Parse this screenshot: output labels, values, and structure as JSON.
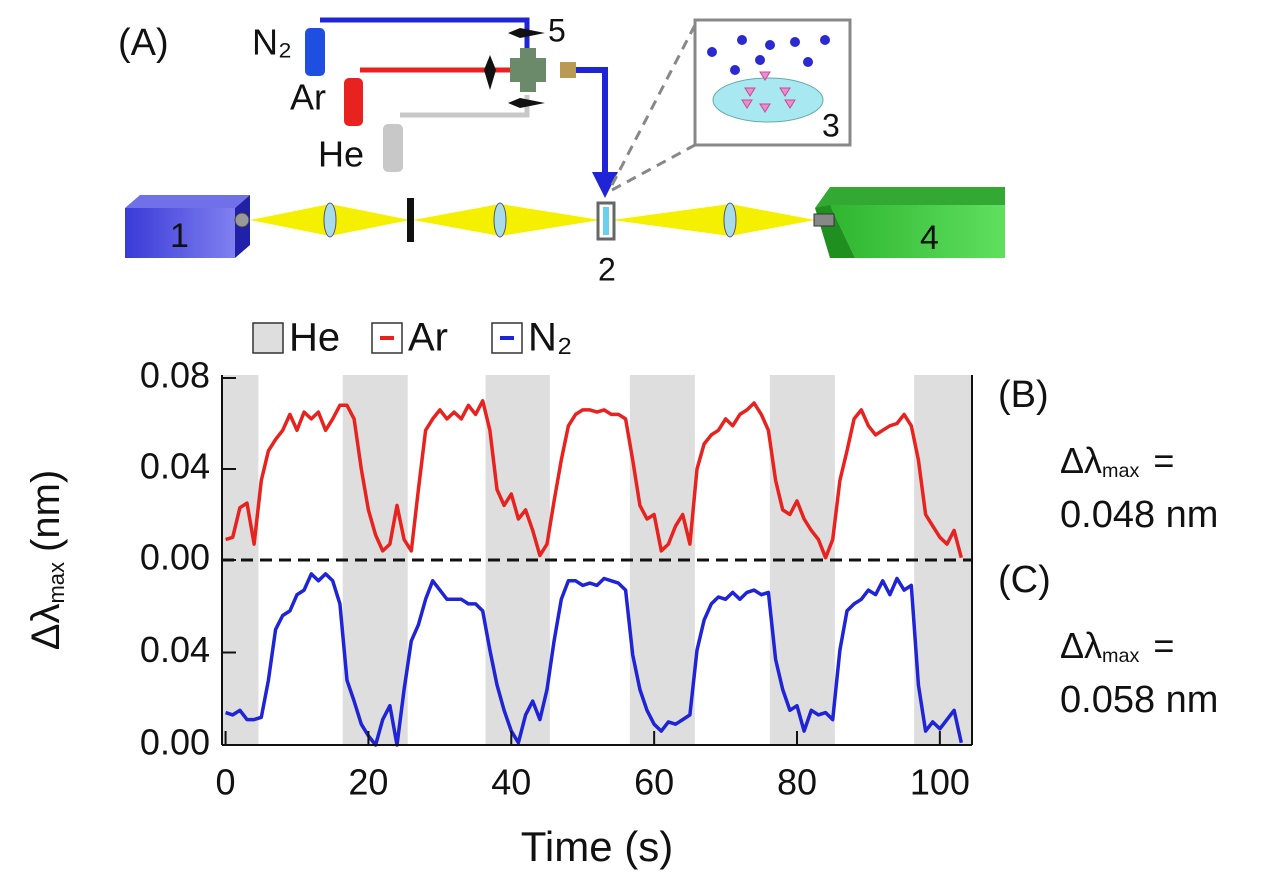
{
  "diagram": {
    "panel_label": "(A)",
    "gases": [
      "N₂",
      "Ar",
      "He"
    ],
    "valve_label": "5",
    "inset_label": "3",
    "source_label": "1",
    "cell_label": "2",
    "detector_label": "4"
  },
  "chart_data": [
    {
      "type": "line",
      "panel_label": "(B)",
      "annotation": {
        "symbol": "Δλ",
        "sub": "max",
        "eq": "=",
        "value": "0.048 nm"
      },
      "y_label": {
        "symbol": "Δλ",
        "sub": "max",
        "unit": "(nm)"
      },
      "shade": {
        "name": "He",
        "color": "#dedede",
        "intervals": [
          [
            -0.5,
            4.6
          ],
          [
            16.4,
            25.5
          ],
          [
            36.4,
            45.4
          ],
          [
            56.6,
            65.7
          ],
          [
            76.2,
            85.3
          ],
          [
            96.4,
            104.5
          ]
        ]
      },
      "x": [
        0,
        1,
        2,
        3,
        4,
        5,
        6,
        7,
        8,
        9,
        10,
        11,
        12,
        13,
        14,
        15,
        16,
        17,
        18,
        19,
        20,
        21,
        22,
        23,
        24,
        25,
        26,
        27,
        28,
        29,
        30,
        31,
        32,
        33,
        34,
        35,
        36,
        37,
        38,
        39,
        40,
        41,
        42,
        43,
        44,
        45,
        46,
        47,
        48,
        49,
        50,
        51,
        52,
        53,
        54,
        55,
        56,
        57,
        58,
        59,
        60,
        61,
        62,
        63,
        64,
        65,
        66,
        67,
        68,
        69,
        70,
        71,
        72,
        73,
        74,
        75,
        76,
        77,
        78,
        79,
        80,
        81,
        82,
        83,
        84,
        85,
        86,
        87,
        88,
        89,
        90,
        91,
        92,
        93,
        94,
        95,
        96,
        97,
        98,
        99,
        100,
        101,
        102,
        103
      ],
      "series": [
        {
          "name": "Ar",
          "color": "#e8231f",
          "values": [
            0.009,
            0.01,
            0.023,
            0.025,
            0.007,
            0.035,
            0.048,
            0.053,
            0.057,
            0.064,
            0.057,
            0.065,
            0.062,
            0.065,
            0.057,
            0.062,
            0.068,
            0.068,
            0.062,
            0.04,
            0.022,
            0.011,
            0.004,
            0.007,
            0.024,
            0.009,
            0.004,
            0.031,
            0.057,
            0.062,
            0.066,
            0.062,
            0.065,
            0.062,
            0.068,
            0.064,
            0.07,
            0.057,
            0.031,
            0.024,
            0.029,
            0.018,
            0.022,
            0.013,
            0.002,
            0.007,
            0.026,
            0.044,
            0.059,
            0.064,
            0.066,
            0.066,
            0.065,
            0.066,
            0.064,
            0.064,
            0.062,
            0.044,
            0.024,
            0.018,
            0.02,
            0.004,
            0.007,
            0.015,
            0.02,
            0.007,
            0.04,
            0.051,
            0.055,
            0.057,
            0.062,
            0.059,
            0.064,
            0.066,
            0.069,
            0.064,
            0.057,
            0.035,
            0.022,
            0.02,
            0.026,
            0.018,
            0.013,
            0.009,
            0.001,
            0.009,
            0.035,
            0.048,
            0.062,
            0.066,
            0.059,
            0.055,
            0.057,
            0.059,
            0.06,
            0.064,
            0.059,
            0.044,
            0.02,
            0.015,
            0.01,
            0.007,
            0.013,
            0.001
          ]
        }
      ],
      "xlim": [
        -0.5,
        104.5
      ],
      "ylim": [
        0,
        0.08
      ],
      "yticks": [
        {
          "value": 0,
          "label": "0.00"
        },
        {
          "value": 0.04,
          "label": "0.04"
        },
        {
          "value": 0.08,
          "label": "0.08"
        }
      ]
    },
    {
      "type": "line",
      "panel_label": "(C)",
      "annotation": {
        "symbol": "Δλ",
        "sub": "max",
        "eq": "=",
        "value": "0.058 nm"
      },
      "x_label": "Time (s)",
      "x": [
        0,
        1,
        2,
        3,
        4,
        5,
        6,
        7,
        8,
        9,
        10,
        11,
        12,
        13,
        14,
        15,
        16,
        17,
        18,
        19,
        20,
        21,
        22,
        23,
        24,
        25,
        26,
        27,
        28,
        29,
        30,
        31,
        32,
        33,
        34,
        35,
        36,
        37,
        38,
        39,
        40,
        41,
        42,
        43,
        44,
        45,
        46,
        47,
        48,
        49,
        50,
        51,
        52,
        53,
        54,
        55,
        56,
        57,
        58,
        59,
        60,
        61,
        62,
        63,
        64,
        65,
        66,
        67,
        68,
        69,
        70,
        71,
        72,
        73,
        74,
        75,
        76,
        77,
        78,
        79,
        80,
        81,
        82,
        83,
        84,
        85,
        86,
        87,
        88,
        89,
        90,
        91,
        92,
        93,
        94,
        95,
        96,
        97,
        98,
        99,
        100,
        101,
        102,
        103
      ],
      "series": [
        {
          "name": "N₂",
          "color": "#1f24d6",
          "values": [
            0.014,
            0.013,
            0.015,
            0.011,
            0.011,
            0.012,
            0.028,
            0.05,
            0.056,
            0.058,
            0.065,
            0.067,
            0.074,
            0.071,
            0.074,
            0.071,
            0.061,
            0.028,
            0.019,
            0.009,
            0.004,
            0.0,
            0.011,
            0.017,
            0.0,
            0.024,
            0.045,
            0.052,
            0.063,
            0.071,
            0.067,
            0.063,
            0.063,
            0.063,
            0.061,
            0.061,
            0.058,
            0.041,
            0.026,
            0.015,
            0.006,
            0.001,
            0.013,
            0.019,
            0.011,
            0.024,
            0.045,
            0.063,
            0.071,
            0.071,
            0.069,
            0.07,
            0.069,
            0.072,
            0.071,
            0.07,
            0.067,
            0.039,
            0.024,
            0.015,
            0.009,
            0.006,
            0.01,
            0.009,
            0.011,
            0.013,
            0.041,
            0.054,
            0.061,
            0.064,
            0.063,
            0.066,
            0.063,
            0.066,
            0.067,
            0.065,
            0.066,
            0.037,
            0.024,
            0.015,
            0.017,
            0.006,
            0.015,
            0.013,
            0.014,
            0.011,
            0.041,
            0.058,
            0.061,
            0.063,
            0.067,
            0.065,
            0.071,
            0.065,
            0.072,
            0.067,
            0.069,
            0.026,
            0.006,
            0.01,
            0.007,
            0.011,
            0.015,
            0.001
          ]
        }
      ],
      "xlim": [
        -0.5,
        104.5
      ],
      "ylim": [
        0,
        0.08
      ],
      "yticks": [
        {
          "value": 0,
          "label": "0.00"
        },
        {
          "value": 0.04,
          "label": "0.04"
        }
      ],
      "xticks": [
        0,
        20,
        40,
        60,
        80,
        100
      ]
    }
  ]
}
